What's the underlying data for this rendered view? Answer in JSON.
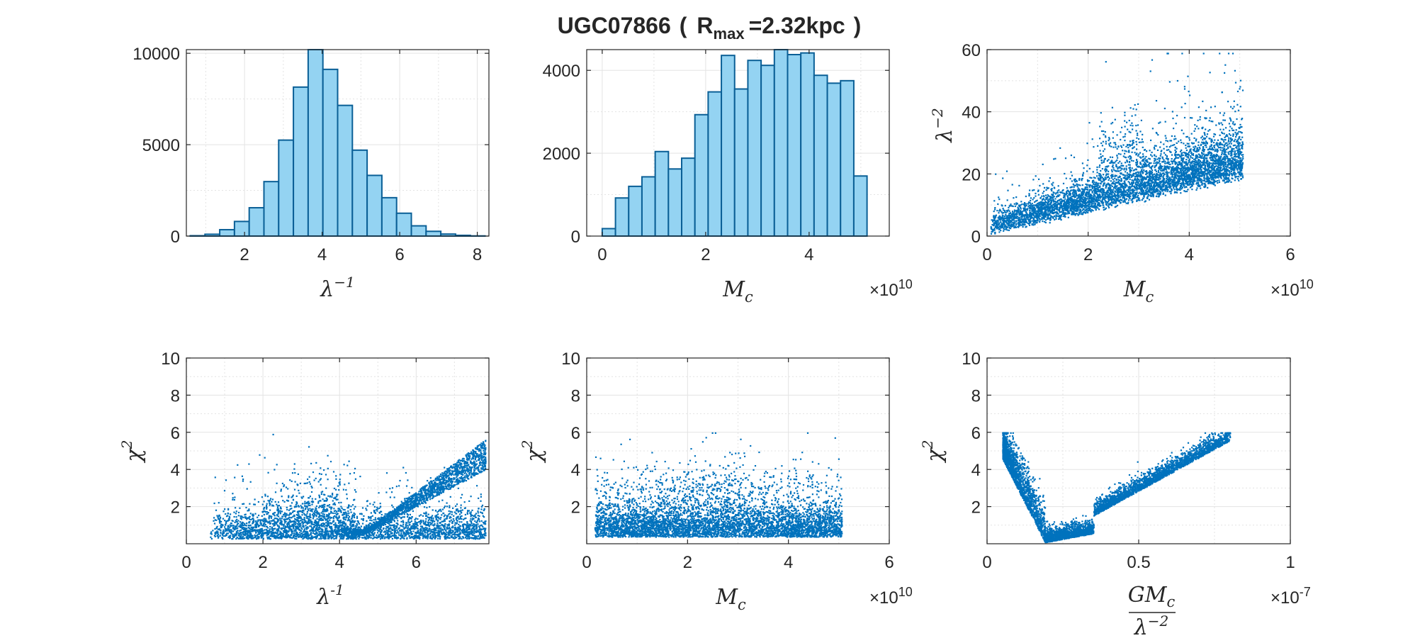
{
  "figure": {
    "title": {
      "main": "UGC07866",
      "open": "(",
      "r": "R",
      "sub": "max",
      "value": "=2.32kpc",
      "close": ")"
    }
  },
  "chart_data": [
    {
      "type": "bar",
      "xlabel": "λ",
      "xlabel_sup": "−1",
      "xlim": [
        0.5,
        8.3
      ],
      "ylim": [
        0,
        10200
      ],
      "xticks": [
        "2",
        "4",
        "6",
        "8"
      ],
      "xtick_values": [
        2,
        4,
        6,
        8
      ],
      "yticks": [
        "0",
        "5000",
        "10000"
      ],
      "ytick_values": [
        0,
        5000,
        10000
      ],
      "bin_start": 0.6,
      "bin_width": 0.38,
      "values": [
        20,
        100,
        350,
        800,
        1550,
        2980,
        5250,
        8150,
        10200,
        9120,
        7150,
        4700,
        3320,
        2100,
        1250,
        560,
        260,
        110,
        40,
        10
      ],
      "grid": true,
      "colors": {
        "fill": "#94d3f2",
        "edge": "#0a5f96"
      }
    },
    {
      "type": "bar",
      "xlabel": "M",
      "xlabel_sub": "c",
      "multiplier": "×10",
      "multiplier_exp": "10",
      "xlim": [
        -0.3,
        5.55
      ],
      "ylim": [
        0,
        4500
      ],
      "xticks": [
        "0",
        "2",
        "4"
      ],
      "xtick_values": [
        0,
        2,
        4
      ],
      "yticks": [
        "0",
        "2000",
        "4000"
      ],
      "ytick_values": [
        0,
        2000,
        4000
      ],
      "bin_start": 0.0,
      "bin_width": 0.256,
      "values": [
        180,
        920,
        1200,
        1430,
        2040,
        1620,
        1880,
        2930,
        3480,
        4360,
        3550,
        4240,
        4120,
        4500,
        4380,
        4420,
        3880,
        3690,
        3750,
        1450
      ],
      "grid": true,
      "colors": {
        "fill": "#94d3f2",
        "edge": "#0a5f96"
      }
    },
    {
      "type": "scatter",
      "xlabel": "M",
      "xlabel_sub": "c",
      "multiplier": "×10",
      "multiplier_exp": "10",
      "ylabel": "λ",
      "ylabel_sup": "−2",
      "xlim": [
        0,
        6
      ],
      "ylim": [
        0,
        60
      ],
      "xticks": [
        "0",
        "2",
        "4",
        "6"
      ],
      "xtick_values": [
        0,
        2,
        4,
        6
      ],
      "yticks": [
        "0",
        "20",
        "40",
        "60"
      ],
      "ytick_values": [
        0,
        20,
        40,
        60
      ],
      "grid": true,
      "colors": {
        "marker": "#0072bd"
      }
    },
    {
      "type": "scatter",
      "xlabel": "λ",
      "xlabel_sup": "-1",
      "ylabel": "χ",
      "ylabel_sup": "2",
      "xlim": [
        0,
        7.9
      ],
      "ylim": [
        0,
        10
      ],
      "xticks": [
        "0",
        "2",
        "4",
        "6"
      ],
      "xtick_values": [
        0,
        2,
        4,
        6
      ],
      "yticks": [
        "2",
        "4",
        "6",
        "8",
        "10"
      ],
      "ytick_values": [
        2,
        4,
        6,
        8,
        10
      ],
      "grid": true,
      "colors": {
        "marker": "#0072bd"
      }
    },
    {
      "type": "scatter",
      "xlabel": "M",
      "xlabel_sub": "c",
      "multiplier": "×10",
      "multiplier_exp": "10",
      "ylabel": "χ",
      "ylabel_sup": "2",
      "xlim": [
        0,
        6
      ],
      "ylim": [
        0,
        10
      ],
      "xticks": [
        "0",
        "2",
        "4",
        "6"
      ],
      "xtick_values": [
        0,
        2,
        4,
        6
      ],
      "yticks": [
        "2",
        "4",
        "6",
        "8",
        "10"
      ],
      "ytick_values": [
        2,
        4,
        6,
        8,
        10
      ],
      "grid": true,
      "colors": {
        "marker": "#0072bd"
      }
    },
    {
      "type": "scatter",
      "xlabel_num": "GM",
      "xlabel_num_sub": "c",
      "xlabel_den": "λ",
      "xlabel_den_sup": "−2",
      "multiplier": "×10",
      "multiplier_exp": "-7",
      "ylabel": "χ",
      "ylabel_sup": "2",
      "xlim": [
        0,
        1
      ],
      "ylim": [
        0,
        10
      ],
      "xticks": [
        "0",
        "0.5",
        "1"
      ],
      "xtick_values": [
        0,
        0.5,
        1
      ],
      "yticks": [
        "2",
        "4",
        "6",
        "8",
        "10"
      ],
      "ytick_values": [
        2,
        4,
        6,
        8,
        10
      ],
      "grid": true,
      "colors": {
        "marker": "#0072bd"
      }
    }
  ]
}
